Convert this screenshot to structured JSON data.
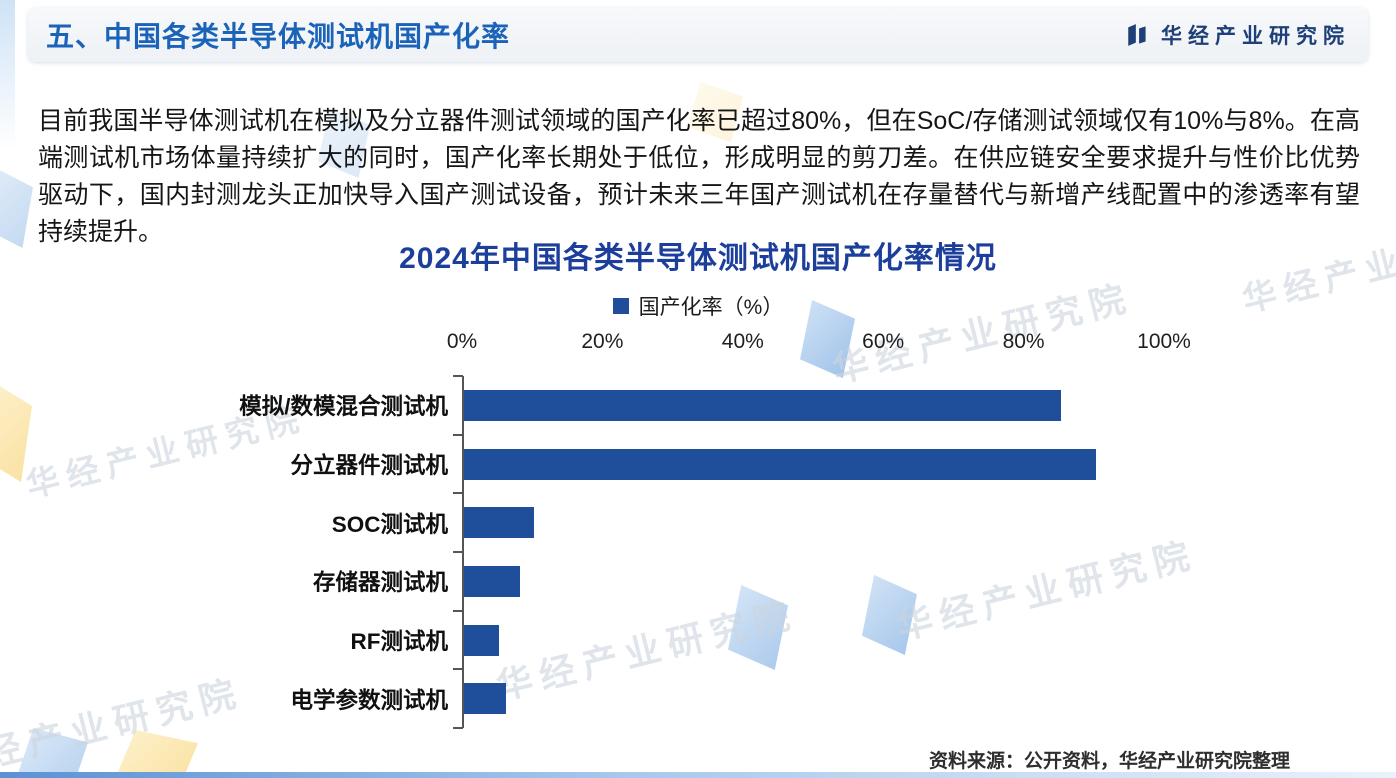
{
  "header": {
    "title": "五、中国各类半导体测试机国产化率",
    "brand": "华经产业研究院"
  },
  "intro": {
    "text": "目前我国半导体测试机在模拟及分立器件测试领域的国产化率已超过80%，但在SoC/存储测试领域仅有10%与8%。在高端测试机市场体量持续扩大的同时，国产化率长期处于低位，形成明显的剪刀差。在供应链安全要求提升与性价比优势驱动下，国内封测龙头正加快导入国产测试设备，预计未来三年国产测试机在存量替代与新增产线配置中的渗透率有望持续提升。"
  },
  "chart_data": {
    "type": "bar",
    "orientation": "horizontal",
    "title": "2024年中国各类半导体测试机国产化率情况",
    "legend": "国产化率（%）",
    "categories": [
      "模拟/数模混合测试机",
      "分立器件测试机",
      "SOC测试机",
      "存储器测试机",
      "RF测试机",
      "电学参数测试机"
    ],
    "values": [
      85,
      90,
      10,
      8,
      5,
      6
    ],
    "x_ticks": [
      "0%",
      "20%",
      "40%",
      "60%",
      "80%",
      "100%"
    ],
    "xlim": [
      0,
      100
    ],
    "bar_color": "#1f4e9b",
    "grid": false,
    "legend_position": "top"
  },
  "source": {
    "text": "资料来源：公开资料，华经产业研究院整理"
  },
  "decor": {
    "watermark": "华经产业研究院"
  },
  "colors": {
    "header_title": "#1a63b8",
    "chart_title": "#1d3f9c",
    "bar": "#1f4e9b",
    "brand": "#1e3f77"
  }
}
